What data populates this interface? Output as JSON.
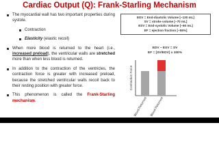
{
  "title": "Cardiac Output (Q): Frank-Starling Mechanism",
  "bullets": [
    {
      "segments": [
        "The myocardial wall has two important properties during systole."
      ],
      "subitems": [
        {
          "segments": [
            "Contraction"
          ]
        },
        {
          "segments": [
            "Elasticity",
            " (elastic recoil)"
          ]
        }
      ]
    },
    {
      "segments": [
        "When more blood is returned to the heart (i.e., ",
        "increased preload",
        "), the ventricular walls are ",
        "stretched",
        " more than when less blood is returned."
      ]
    },
    {
      "segments": [
        "In addition to the contraction of the ventricles, the contraction force is greater with increased preload, because the stretched ventricular walls recoil back to their resting position with greater force."
      ]
    },
    {
      "segments": [
        "This phenomenon is called the ",
        "Frank-Starling mechanism",
        "."
      ]
    }
  ],
  "definitions": [
    "EDV = End-diastolic Volume [~130 mL]",
    "SV = stroke volume [~70 mL]",
    "ESV = End-systolic Volume [~60 mL]",
    "EF = ejection fraction [~55%]"
  ],
  "equations": [
    "EDV – ESV = SV",
    "EF = [SV/EDV] x 100%"
  ],
  "diagram": {
    "y_label": "Contraction Force",
    "x_labels": [
      "Less Blood Returned",
      "More Blood Returned"
    ]
  }
}
